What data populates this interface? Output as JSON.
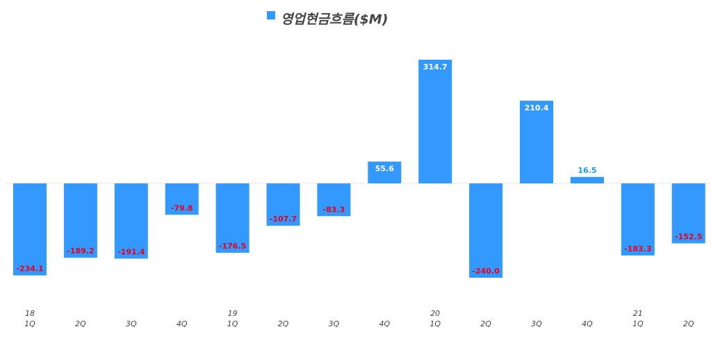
{
  "chart_data": {
    "type": "bar",
    "categories": [
      "18\n1Q",
      "2Q",
      "3Q",
      "4Q",
      "19\n1Q",
      "2Q",
      "3Q",
      "4Q",
      "20\n1Q",
      "2Q",
      "3Q",
      "4Q",
      "21\n1Q",
      "2Q"
    ],
    "series": [
      {
        "name": "영업현금흐름($M)",
        "color": "#3399ff",
        "values": [
          -234.1,
          -189.2,
          -191.4,
          -79.8,
          -176.5,
          -107.7,
          -83.3,
          55.6,
          314.7,
          -240.0,
          210.4,
          16.5,
          -183.3,
          -152.5
        ],
        "value_labels": [
          "-234.1",
          "-189.2",
          "-191.4",
          "-79.8",
          "-176.5",
          "-107.7",
          "-83.3",
          "55.6",
          "314.7",
          "-240.0",
          "210.4",
          "16.5",
          "-183.3",
          "-152.5"
        ]
      }
    ],
    "legend": "top"
  }
}
